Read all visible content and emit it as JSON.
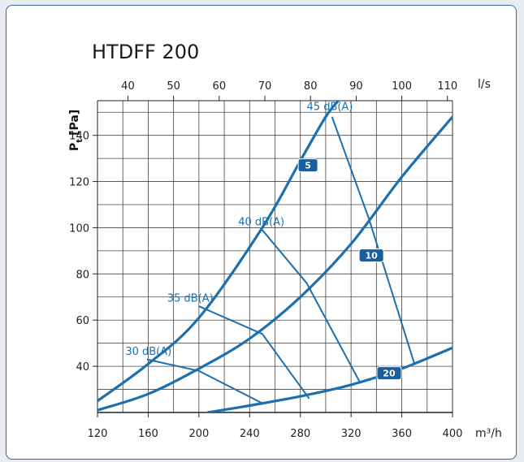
{
  "chart_data": {
    "type": "line",
    "title": "HTDFF 200",
    "ylabel": "Pt [Pa]",
    "ylabel_main": "P",
    "ylabel_sub": "t",
    "ylabel_unit": "[Pa]",
    "x_unit": "m³/h",
    "x2_unit": "l/s",
    "xlim": [
      120,
      400
    ],
    "ylim": [
      20,
      155
    ],
    "x_ticks": [
      "120",
      "160",
      "200",
      "240",
      "280",
      "320",
      "360",
      "400"
    ],
    "x2_ticks": [
      "40",
      "50",
      "60",
      "70",
      "80",
      "90",
      "100",
      "110"
    ],
    "y_ticks": [
      "40",
      "60",
      "80",
      "100",
      "120",
      "140"
    ],
    "grid": true,
    "colors": {
      "curve": "#1d6fae",
      "badge": "#1b5e9b",
      "grid": "#444444"
    },
    "series": [
      {
        "name": "5",
        "points": [
          [
            120,
            25
          ],
          [
            160,
            41
          ],
          [
            200,
            61
          ],
          [
            250,
            100
          ],
          [
            280,
            129
          ],
          [
            300,
            148
          ],
          [
            310,
            155
          ]
        ]
      },
      {
        "name": "10",
        "points": [
          [
            120,
            21
          ],
          [
            160,
            28
          ],
          [
            200,
            39
          ],
          [
            240,
            52
          ],
          [
            280,
            70
          ],
          [
            320,
            93
          ],
          [
            360,
            122
          ],
          [
            400,
            148
          ]
        ]
      },
      {
        "name": "20",
        "points": [
          [
            207,
            20
          ],
          [
            240,
            23
          ],
          [
            280,
            27
          ],
          [
            320,
            32
          ],
          [
            360,
            39
          ],
          [
            400,
            48
          ]
        ]
      }
    ],
    "sound_lines": [
      {
        "name": "30 dB(A)",
        "points": [
          [
            159,
            43
          ],
          [
            200,
            38
          ],
          [
            250,
            24
          ]
        ]
      },
      {
        "name": "35 dB(A)",
        "points": [
          [
            200,
            66
          ],
          [
            250,
            54
          ],
          [
            287,
            26
          ]
        ]
      },
      {
        "name": "40 dB(A)",
        "points": [
          [
            250,
            99
          ],
          [
            285,
            76
          ],
          [
            327,
            33
          ]
        ]
      },
      {
        "name": "45 dB(A)",
        "points": [
          [
            305,
            148
          ],
          [
            334,
            104
          ],
          [
            370,
            41
          ]
        ]
      }
    ],
    "badges": [
      {
        "text": "5",
        "x": 286,
        "y": 127
      },
      {
        "text": "10",
        "x": 336,
        "y": 88
      },
      {
        "text": "20",
        "x": 350,
        "y": 37
      }
    ],
    "db_labels": [
      {
        "text": "45 dB(A)",
        "x": 285,
        "y": 151
      },
      {
        "text": "40 dB(A)",
        "x": 231,
        "y": 101
      },
      {
        "text": "35 dB(A)",
        "x": 175,
        "y": 68
      },
      {
        "text": "30 dB(A)",
        "x": 142,
        "y": 45
      }
    ]
  }
}
